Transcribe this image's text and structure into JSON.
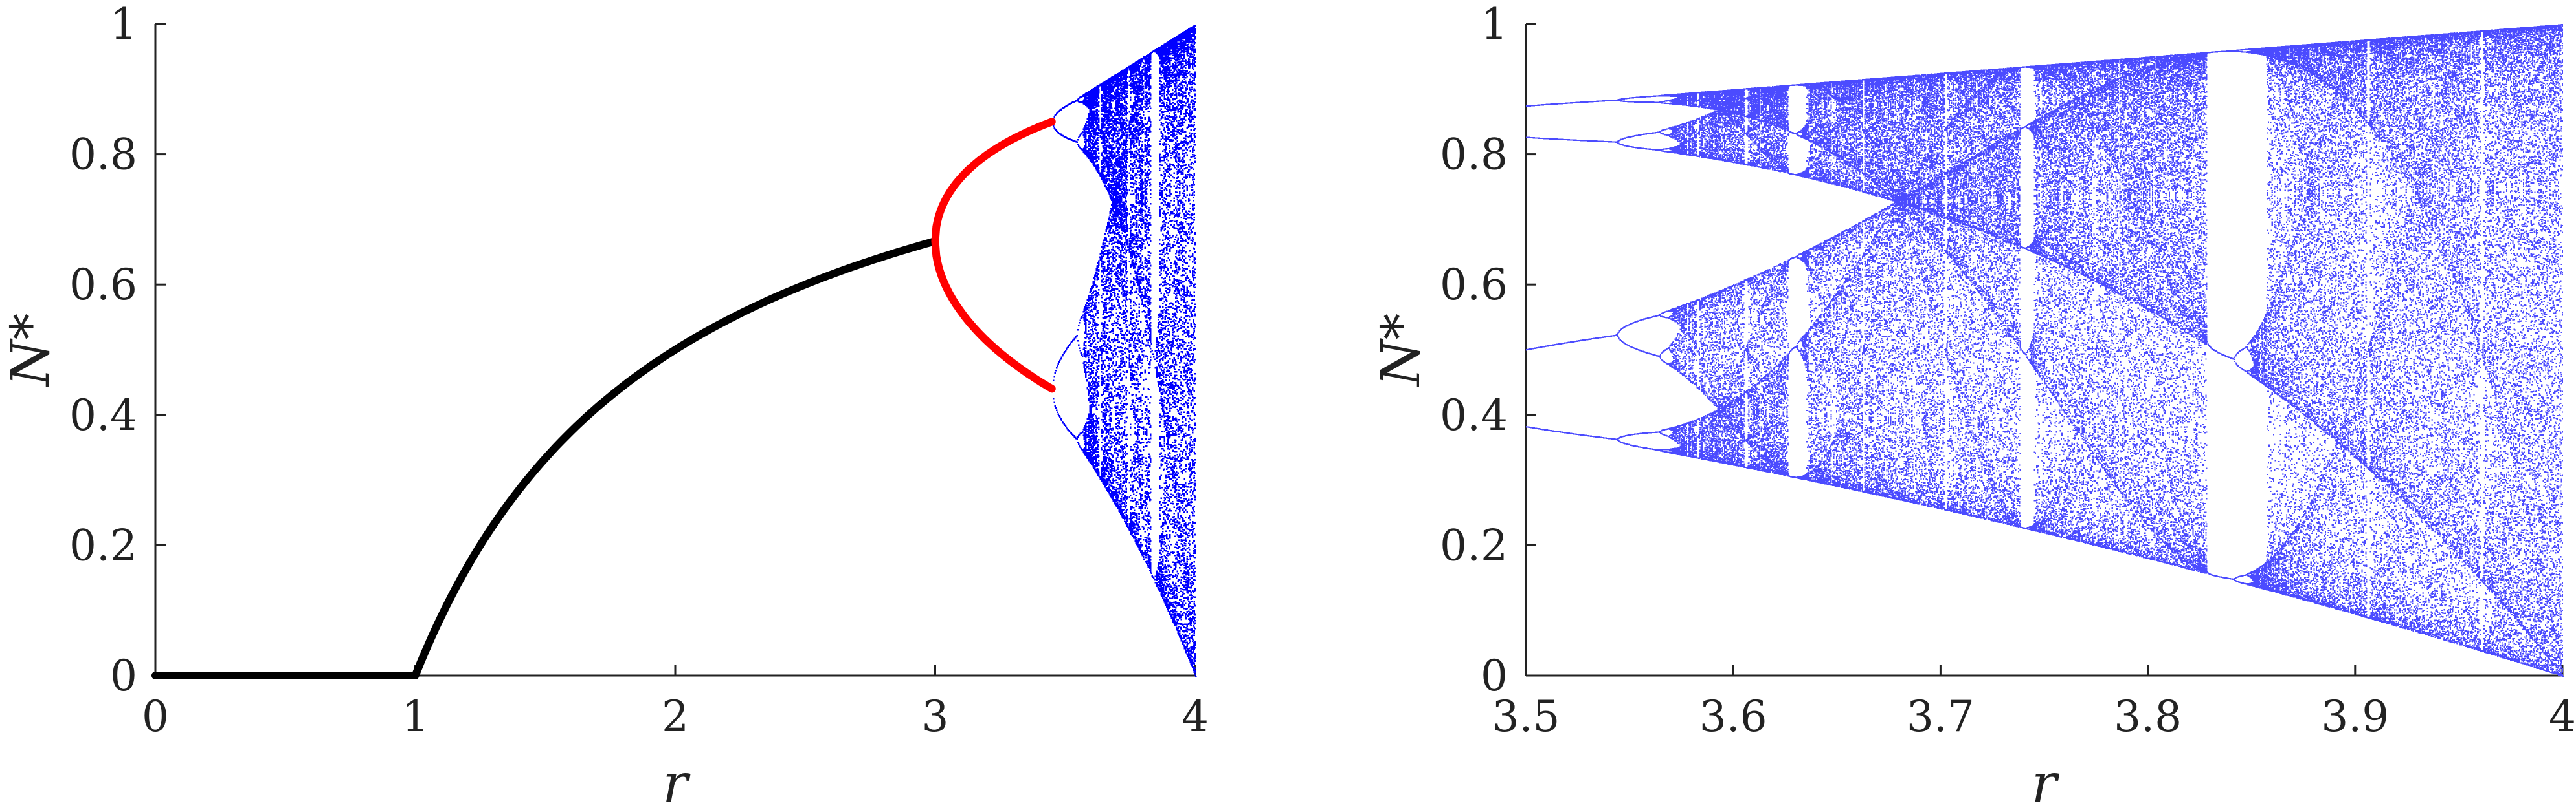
{
  "chart_data": [
    {
      "type": "line",
      "title": "",
      "xlabel": "r",
      "ylabel": "N*",
      "xlim": [
        0,
        4
      ],
      "ylim": [
        0,
        1
      ],
      "xticks": [
        "0",
        "1",
        "2",
        "3",
        "4"
      ],
      "yticks": [
        "0",
        "0.2",
        "0.4",
        "0.6",
        "0.8",
        "1"
      ],
      "grid": false,
      "legend": "none",
      "series": [
        {
          "color": "#000000",
          "style": "thick line",
          "formula": "N* = 0 for r <= 1; N* = 1 - 1/r for 1 <= r <= 3",
          "x": [
            0,
            1,
            1.5,
            2,
            2.5,
            3
          ],
          "y": [
            0,
            0,
            0.333,
            0.5,
            0.6,
            0.667
          ]
        },
        {
          "color": "#ff0000",
          "style": "thick line",
          "formula": "period-2 branches, 3 <= r <= 3.449",
          "x": [
            3.0,
            3.1,
            3.2,
            3.3,
            3.449
          ],
          "y_upper": [
            0.667,
            0.765,
            0.799,
            0.824,
            0.852
          ],
          "y_lower": [
            0.667,
            0.558,
            0.513,
            0.48,
            0.44
          ]
        },
        {
          "color": "#0000ff",
          "style": "dense points",
          "formula": "iterates of N(t+1) = r N(t) (1 - N(t))",
          "x_range": [
            3.449,
            4.0
          ]
        }
      ]
    },
    {
      "type": "scatter",
      "title": "",
      "xlabel": "r",
      "ylabel": "N*",
      "xlim": [
        3.5,
        4
      ],
      "ylim": [
        0,
        1
      ],
      "xticks": [
        "3.5",
        "3.6",
        "3.7",
        "3.8",
        "3.9",
        "4"
      ],
      "yticks": [
        "0",
        "0.2",
        "0.4",
        "0.6",
        "0.8",
        "1"
      ],
      "grid": false,
      "legend": "none",
      "series": [
        {
          "color": "#4b4bff",
          "style": "small points",
          "formula": "iterates of N(t+1) = r N(t) (1 - N(t))",
          "x_range": [
            3.5,
            4.0
          ]
        }
      ]
    }
  ]
}
